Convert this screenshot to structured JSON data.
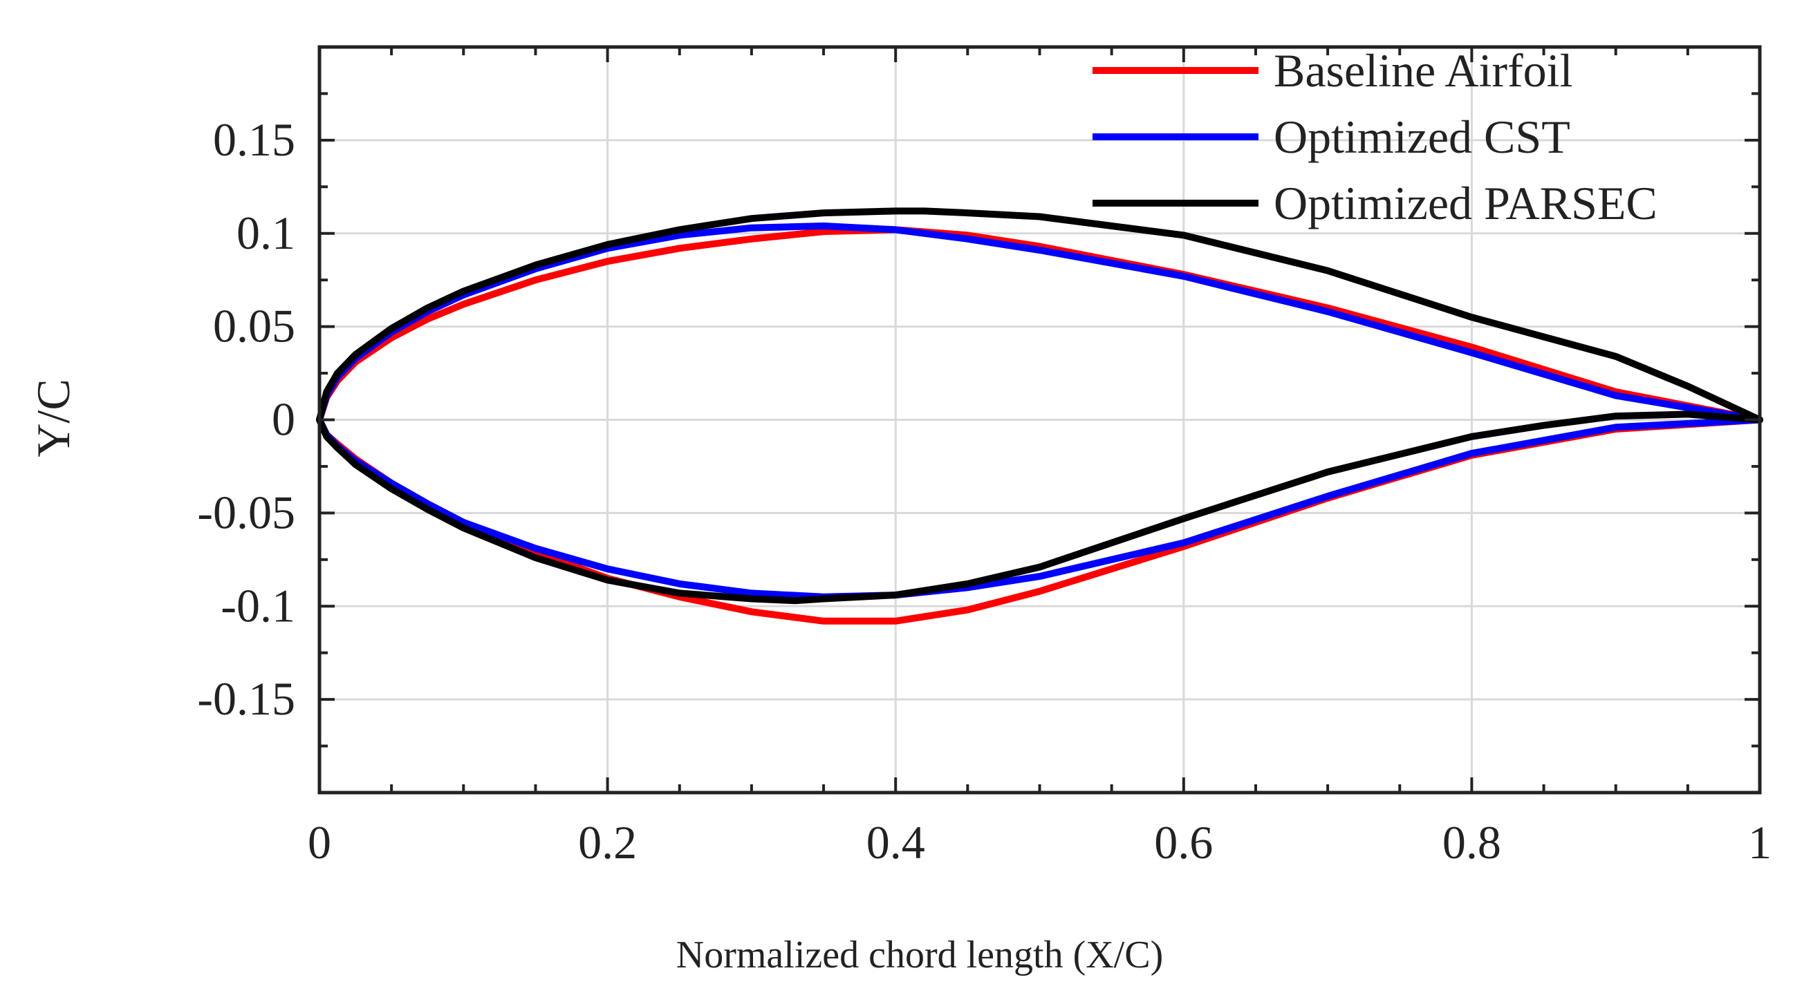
{
  "chart_data": {
    "type": "line",
    "title": "",
    "xlabel": "Normalized chord length (X/C)",
    "ylabel": "Y/C",
    "xlim": [
      0,
      1
    ],
    "ylim": [
      -0.2,
      0.2
    ],
    "grid": true,
    "legend_position": "top-right",
    "x_ticks": [
      0,
      0.2,
      0.4,
      0.6,
      0.8,
      1
    ],
    "x_tick_labels": [
      "0",
      "0.2",
      "0.4",
      "0.6",
      "0.8",
      "1"
    ],
    "y_ticks": [
      0.15,
      0.1,
      0.05,
      0,
      -0.05,
      -0.1,
      -0.15
    ],
    "y_tick_labels": [
      "0.15",
      "0.1",
      "0.05",
      "0",
      "-0.05",
      "-0.1",
      "-0.15"
    ],
    "series": [
      {
        "name": "Baseline Airfoil",
        "color": "#ff0000",
        "x": [
          1.0,
          0.9,
          0.8,
          0.7,
          0.6,
          0.5,
          0.45,
          0.4,
          0.35,
          0.3,
          0.25,
          0.2,
          0.15,
          0.1,
          0.075,
          0.05,
          0.025,
          0.0125,
          0.005,
          0.0,
          0.005,
          0.0125,
          0.025,
          0.05,
          0.075,
          0.1,
          0.15,
          0.2,
          0.25,
          0.3,
          0.35,
          0.4,
          0.45,
          0.5,
          0.6,
          0.7,
          0.8,
          0.9,
          1.0
        ],
        "y": [
          0.0,
          0.015,
          0.039,
          0.06,
          0.078,
          0.093,
          0.099,
          0.102,
          0.101,
          0.097,
          0.092,
          0.085,
          0.075,
          0.062,
          0.054,
          0.044,
          0.031,
          0.021,
          0.012,
          0.0,
          -0.008,
          -0.013,
          -0.021,
          -0.034,
          -0.045,
          -0.055,
          -0.071,
          -0.085,
          -0.095,
          -0.103,
          -0.108,
          -0.108,
          -0.102,
          -0.092,
          -0.068,
          -0.042,
          -0.019,
          -0.005,
          0.0
        ]
      },
      {
        "name": "Optimized CST",
        "color": "#0000ff",
        "x": [
          1.0,
          0.9,
          0.8,
          0.7,
          0.6,
          0.5,
          0.45,
          0.4,
          0.35,
          0.3,
          0.25,
          0.2,
          0.15,
          0.1,
          0.075,
          0.05,
          0.025,
          0.0125,
          0.005,
          0.0,
          0.005,
          0.0125,
          0.025,
          0.05,
          0.075,
          0.1,
          0.15,
          0.2,
          0.25,
          0.3,
          0.35,
          0.4,
          0.45,
          0.5,
          0.6,
          0.7,
          0.8,
          0.9,
          1.0
        ],
        "y": [
          0.0,
          0.013,
          0.036,
          0.058,
          0.077,
          0.091,
          0.097,
          0.102,
          0.104,
          0.103,
          0.099,
          0.092,
          0.081,
          0.067,
          0.058,
          0.047,
          0.033,
          0.023,
          0.013,
          0.0,
          -0.008,
          -0.014,
          -0.022,
          -0.034,
          -0.045,
          -0.055,
          -0.069,
          -0.08,
          -0.088,
          -0.093,
          -0.095,
          -0.094,
          -0.09,
          -0.084,
          -0.066,
          -0.041,
          -0.018,
          -0.004,
          0.0
        ]
      },
      {
        "name": "Optimized PARSEC",
        "color": "#000000",
        "x": [
          1.0,
          0.95,
          0.9,
          0.8,
          0.7,
          0.6,
          0.5,
          0.45,
          0.42,
          0.4,
          0.35,
          0.3,
          0.25,
          0.2,
          0.15,
          0.1,
          0.075,
          0.05,
          0.025,
          0.0125,
          0.005,
          0.0,
          0.005,
          0.0125,
          0.025,
          0.05,
          0.075,
          0.1,
          0.15,
          0.2,
          0.25,
          0.3,
          0.33,
          0.35,
          0.4,
          0.45,
          0.5,
          0.6,
          0.7,
          0.8,
          0.85,
          0.9,
          0.95,
          1.0
        ],
        "y": [
          0.0,
          0.018,
          0.034,
          0.055,
          0.08,
          0.099,
          0.109,
          0.111,
          0.112,
          0.112,
          0.111,
          0.108,
          0.102,
          0.094,
          0.083,
          0.069,
          0.06,
          0.049,
          0.035,
          0.025,
          0.015,
          0.0,
          -0.009,
          -0.015,
          -0.024,
          -0.037,
          -0.048,
          -0.058,
          -0.074,
          -0.086,
          -0.093,
          -0.096,
          -0.097,
          -0.096,
          -0.094,
          -0.088,
          -0.079,
          -0.053,
          -0.028,
          -0.009,
          -0.003,
          0.002,
          0.003,
          0.0
        ]
      }
    ]
  }
}
